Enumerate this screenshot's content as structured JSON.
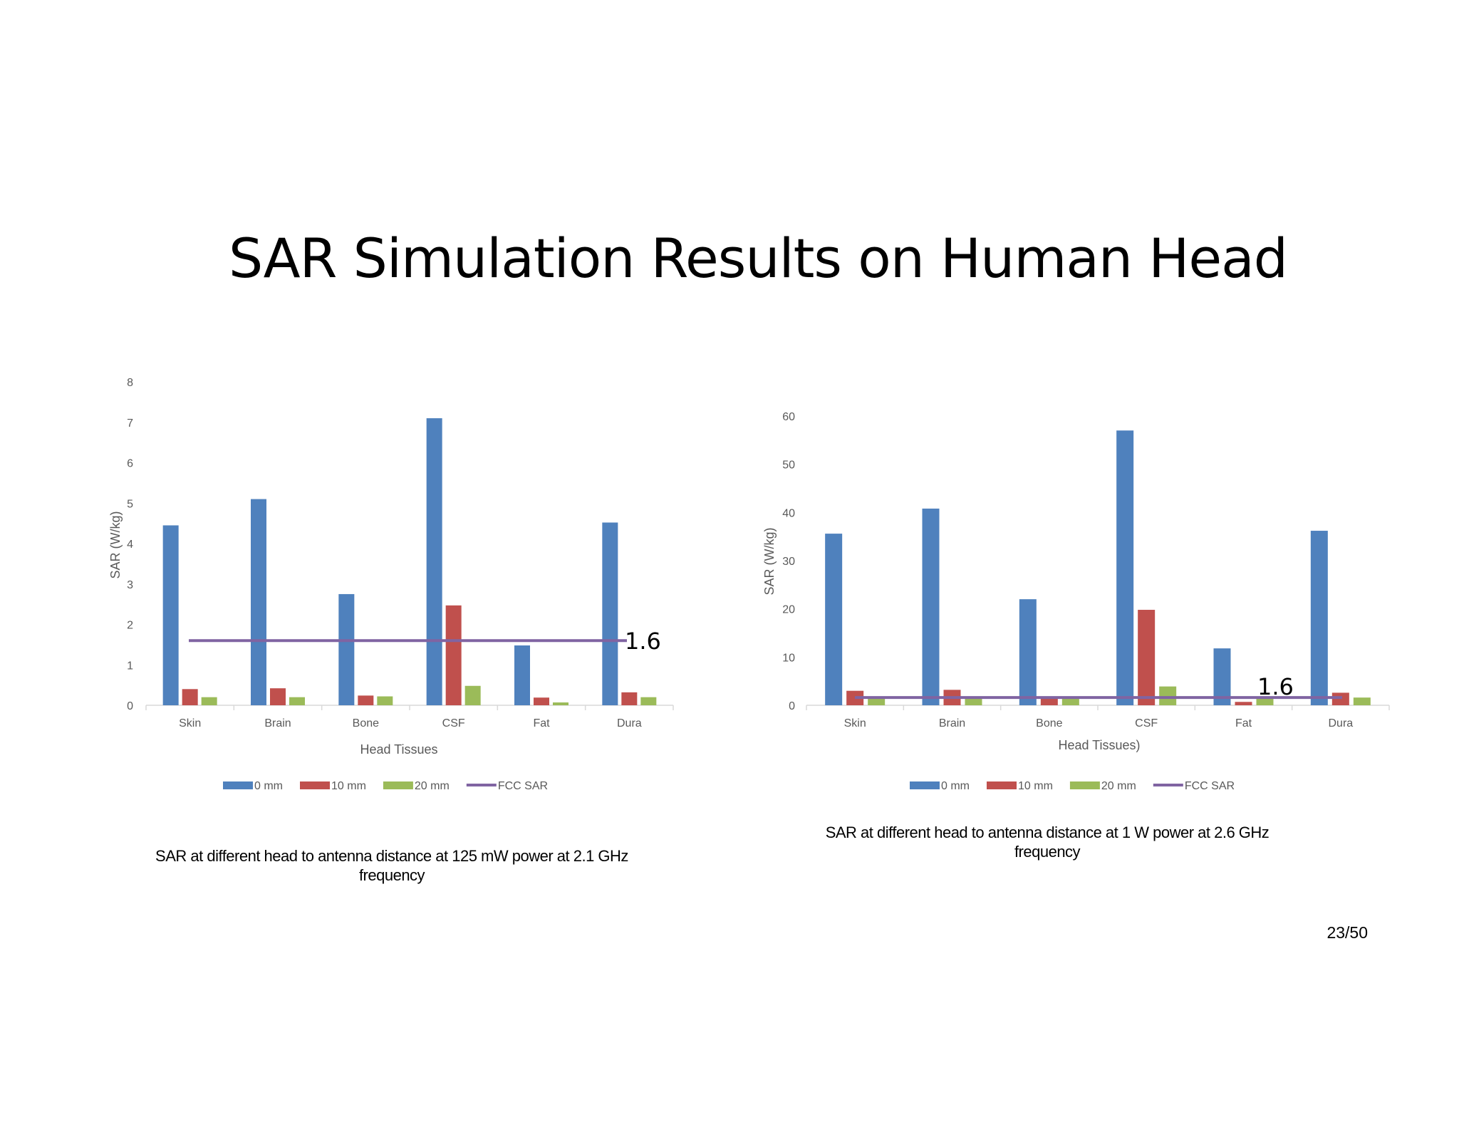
{
  "slide": {
    "title": "SAR Simulation Results on Human Head",
    "page_number": "23/50"
  },
  "colors": {
    "series_0mm": "#4F81BD",
    "series_10mm": "#C0504D",
    "series_20mm": "#9BBB59",
    "fcc_line": "#8064A2",
    "axis": "#D9D9D9",
    "text": "#595959"
  },
  "chart_data": [
    {
      "type": "bar",
      "title": "",
      "caption_line1": "SAR at different head to antenna distance at 125 mW power at 2.1 GHz",
      "caption_line2": "frequency",
      "xlabel": "Head Tissues",
      "ylabel": "SAR (W/kg)",
      "ylim": [
        0,
        8
      ],
      "yticks": [
        "0",
        "1",
        "2",
        "3",
        "4",
        "5",
        "6",
        "7",
        "8"
      ],
      "categories": [
        "Skin",
        "Brain",
        "Bone",
        "CSF",
        "Fat",
        "Dura"
      ],
      "series": [
        {
          "name": "0 mm",
          "values": [
            4.45,
            5.1,
            2.75,
            7.1,
            1.48,
            4.52
          ]
        },
        {
          "name": "10 mm",
          "values": [
            0.4,
            0.42,
            0.24,
            2.47,
            0.19,
            0.32
          ]
        },
        {
          "name": "20 mm",
          "values": [
            0.2,
            0.2,
            0.22,
            0.48,
            0.07,
            0.2
          ]
        }
      ],
      "fcc_sar": {
        "name": "FCC SAR",
        "value": 1.6
      },
      "annotation": "1.6",
      "grid": false,
      "legend_position": "bottom"
    },
    {
      "type": "bar",
      "title": "",
      "caption_line1": "SAR at different head to antenna distance at 1 W power at 2.6 GHz",
      "caption_line2": "frequency",
      "xlabel": "Head Tissues)",
      "ylabel": "SAR (W/kg)",
      "ylim": [
        0,
        60
      ],
      "yticks": [
        "0",
        "10",
        "20",
        "30",
        "40",
        "50",
        "60"
      ],
      "categories": [
        "Skin",
        "Brain",
        "Bone",
        "CSF",
        "Fat",
        "Dura"
      ],
      "series": [
        {
          "name": "0 mm",
          "values": [
            35.6,
            40.8,
            22.0,
            57.0,
            11.8,
            36.2
          ]
        },
        {
          "name": "10 mm",
          "values": [
            3.0,
            3.2,
            1.8,
            19.8,
            0.7,
            2.6
          ]
        },
        {
          "name": "20 mm",
          "values": [
            1.6,
            1.6,
            1.6,
            3.9,
            1.6,
            1.6
          ]
        }
      ],
      "fcc_sar": {
        "name": "FCC SAR",
        "value": 1.6
      },
      "annotation": "1.6",
      "grid": false,
      "legend_position": "bottom"
    }
  ]
}
